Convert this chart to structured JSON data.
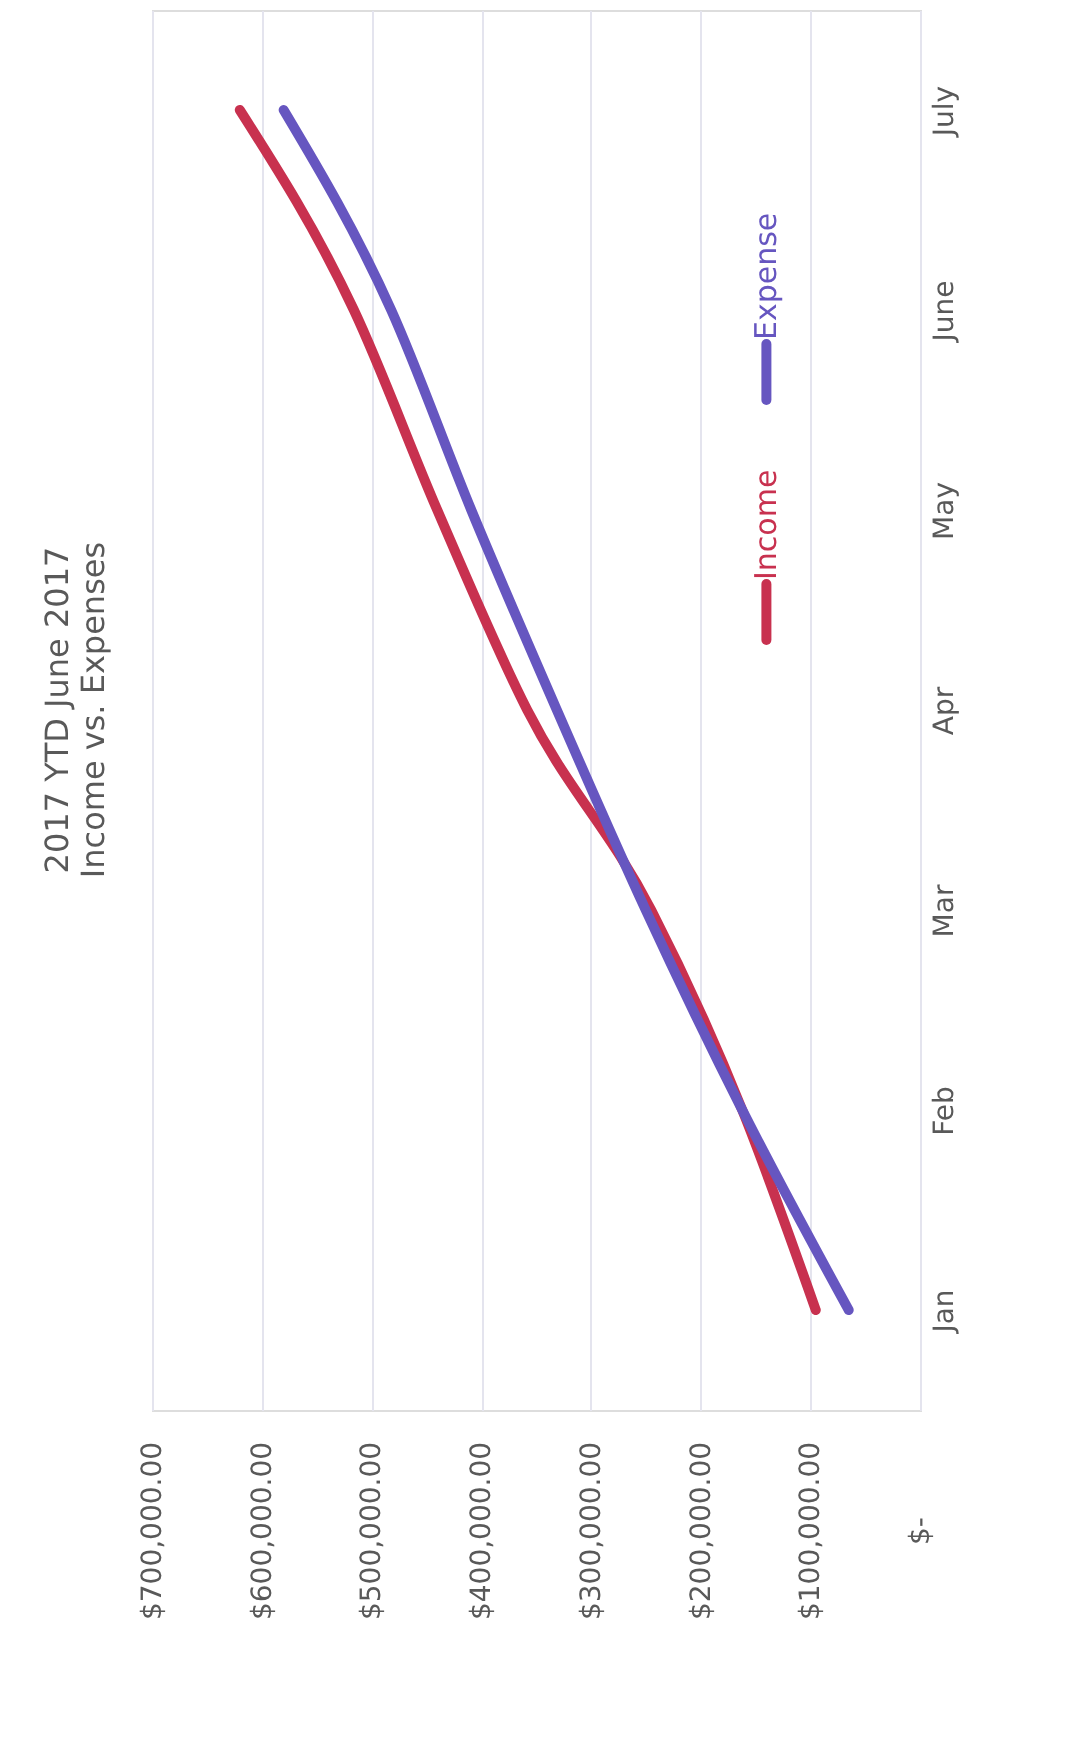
{
  "chart_data": {
    "type": "line",
    "orientation": "horizontal",
    "title": [
      "2017   YTD June 2017",
      "Income vs. Expenses"
    ],
    "categories": [
      "July",
      "June",
      "May",
      "Apr",
      "Mar",
      "Feb",
      "Jan"
    ],
    "series": [
      {
        "name": "Income",
        "color": "#c8314f",
        "values": [
          620000,
          516000,
          440000,
          358000,
          245000,
          162000,
          95000
        ]
      },
      {
        "name": "Expense",
        "color": "#6656c0",
        "values": [
          580000,
          482000,
          409000,
          331000,
          250000,
          162000,
          65000
        ]
      }
    ],
    "xlim": [
      700000,
      0
    ],
    "xticks": [
      {
        "value": 0,
        "label": "$-"
      },
      {
        "value": 100000,
        "label": "$100,000.00"
      },
      {
        "value": 200000,
        "label": "$200,000.00"
      },
      {
        "value": 300000,
        "label": "$300,000.00"
      },
      {
        "value": 400000,
        "label": "$400,000.00"
      },
      {
        "value": 500000,
        "label": "$500,000.00"
      },
      {
        "value": 600000,
        "label": "$600,000.00"
      },
      {
        "value": 700000,
        "label": "$700,000.00"
      }
    ],
    "grid": "x",
    "legend": "right",
    "marker": "none",
    "line_style": "solid"
  }
}
